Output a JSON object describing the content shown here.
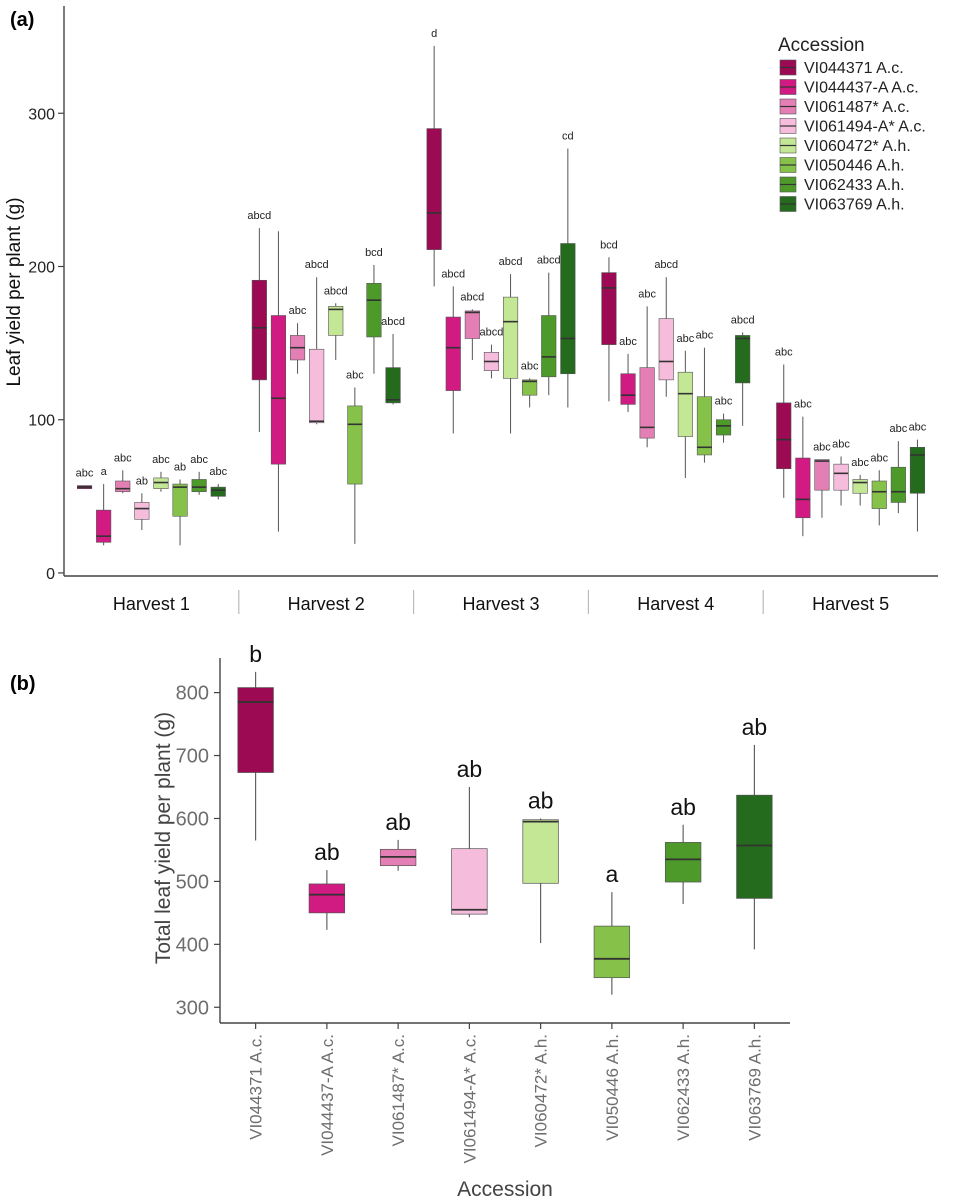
{
  "colors": {
    "accessions": [
      "#9b0a53",
      "#d11a82",
      "#e37fb4",
      "#f6bcdc",
      "#c3e795",
      "#86c24a",
      "#4d9a2a",
      "#256b1e"
    ],
    "median": "#333333",
    "whisker": "#555555"
  },
  "chart_data": [
    {
      "type": "box",
      "panel_label": "(a)",
      "title": "",
      "xlabel": "",
      "ylabel": "Leaf yield per plant (g)",
      "ylim": [
        -2,
        370
      ],
      "yticks": [
        0,
        100,
        200,
        300
      ],
      "grid": false,
      "legend": {
        "title": "Accession",
        "placement": "top-right",
        "entries": [
          "VI044371 A.c.",
          "VI044437-A A.c.",
          "VI061487* A.c.",
          "VI061494-A* A.c.",
          "VI060472* A.h.",
          "VI050446 A.h.",
          "VI062433 A.h.",
          "VI063769 A.h."
        ]
      },
      "groups": [
        {
          "label": "Harvest 1",
          "boxes": [
            {
              "accession": "VI044371 A.c.",
              "min": 55,
              "q1": 55,
              "median": 56,
              "q3": 57,
              "max": 57,
              "sig": "abc"
            },
            {
              "accession": "VI044437-A A.c.",
              "min": 18,
              "q1": 20,
              "median": 24,
              "q3": 41,
              "max": 58,
              "sig": "a"
            },
            {
              "accession": "VI061487* A.c.",
              "min": 52,
              "q1": 53,
              "median": 55,
              "q3": 60,
              "max": 67,
              "sig": "abc"
            },
            {
              "accession": "VI061494-A* A.c.",
              "min": 28,
              "q1": 35,
              "median": 42,
              "q3": 46,
              "max": 52,
              "sig": "ab"
            },
            {
              "accession": "VI060472* A.h.",
              "min": 53,
              "q1": 55,
              "median": 59,
              "q3": 62,
              "max": 66,
              "sig": "abc"
            },
            {
              "accession": "VI050446 A.h.",
              "min": 18,
              "q1": 37,
              "median": 56,
              "q3": 58,
              "max": 61,
              "sig": "ab"
            },
            {
              "accession": "VI062433 A.h.",
              "min": 51,
              "q1": 53,
              "median": 56,
              "q3": 61,
              "max": 66,
              "sig": "abc"
            },
            {
              "accession": "VI063769 A.h.",
              "min": 48,
              "q1": 50,
              "median": 54,
              "q3": 56,
              "max": 58,
              "sig": "abc"
            }
          ]
        },
        {
          "label": "Harvest 2",
          "boxes": [
            {
              "accession": "VI044371 A.c.",
              "min": 92,
              "q1": 126,
              "median": 160,
              "q3": 191,
              "max": 225,
              "sig": "abcd"
            },
            {
              "accession": "VI044437-A A.c.",
              "min": 27,
              "q1": 71,
              "median": 114,
              "q3": 168,
              "max": 223,
              "sig": ""
            },
            {
              "accession": "VI061487* A.c.",
              "min": 130,
              "q1": 139,
              "median": 147,
              "q3": 155,
              "max": 163,
              "sig": "abc"
            },
            {
              "accession": "VI061494-A* A.c.",
              "min": 97,
              "q1": 98,
              "median": 99,
              "q3": 146,
              "max": 193,
              "sig": "abcd"
            },
            {
              "accession": "VI060472* A.h.",
              "min": 139,
              "q1": 155,
              "median": 172,
              "q3": 174,
              "max": 176,
              "sig": "abcd"
            },
            {
              "accession": "VI050446 A.h.",
              "min": 19,
              "q1": 58,
              "median": 97,
              "q3": 109,
              "max": 121,
              "sig": "abc"
            },
            {
              "accession": "VI062433 A.h.",
              "min": 130,
              "q1": 154,
              "median": 178,
              "q3": 189,
              "max": 201,
              "sig": "bcd"
            },
            {
              "accession": "VI063769 A.h.",
              "min": 110,
              "q1": 111,
              "median": 113,
              "q3": 134,
              "max": 156,
              "sig": "abcd"
            }
          ]
        },
        {
          "label": "Harvest 3",
          "boxes": [
            {
              "accession": "VI044371 A.c.",
              "min": 187,
              "q1": 211,
              "median": 235,
              "q3": 290,
              "max": 344,
              "sig": "d"
            },
            {
              "accession": "VI044437-A A.c.",
              "min": 91,
              "q1": 119,
              "median": 147,
              "q3": 167,
              "max": 187,
              "sig": "abcd"
            },
            {
              "accession": "VI061487* A.c.",
              "min": 139,
              "q1": 153,
              "median": 170,
              "q3": 171,
              "max": 172,
              "sig": "abcd"
            },
            {
              "accession": "VI061494-A* A.c.",
              "min": 127,
              "q1": 132,
              "median": 138,
              "q3": 144,
              "max": 149,
              "sig": "abcd"
            },
            {
              "accession": "VI060472* A.h.",
              "min": 91,
              "q1": 127,
              "median": 164,
              "q3": 180,
              "max": 195,
              "sig": "abcd"
            },
            {
              "accession": "VI050446 A.h.",
              "min": 108,
              "q1": 116,
              "median": 125,
              "q3": 126,
              "max": 127,
              "sig": "abc"
            },
            {
              "accession": "VI062433 A.h.",
              "min": 116,
              "q1": 128,
              "median": 141,
              "q3": 168,
              "max": 196,
              "sig": "abcd"
            },
            {
              "accession": "VI063769 A.h.",
              "min": 108,
              "q1": 130,
              "median": 153,
              "q3": 215,
              "max": 277,
              "sig": "cd"
            }
          ]
        },
        {
          "label": "Harvest 4",
          "boxes": [
            {
              "accession": "VI044371 A.c.",
              "min": 112,
              "q1": 149,
              "median": 186,
              "q3": 196,
              "max": 206,
              "sig": "bcd"
            },
            {
              "accession": "VI044437-A A.c.",
              "min": 105,
              "q1": 110,
              "median": 116,
              "q3": 130,
              "max": 143,
              "sig": "abc"
            },
            {
              "accession": "VI061487* A.c.",
              "min": 82,
              "q1": 88,
              "median": 95,
              "q3": 134,
              "max": 174,
              "sig": "abc"
            },
            {
              "accession": "VI061494-A* A.c.",
              "min": 115,
              "q1": 126,
              "median": 138,
              "q3": 166,
              "max": 193,
              "sig": "abcd"
            },
            {
              "accession": "VI060472* A.h.",
              "min": 62,
              "q1": 89,
              "median": 117,
              "q3": 131,
              "max": 145,
              "sig": "abc"
            },
            {
              "accession": "VI050446 A.h.",
              "min": 72,
              "q1": 77,
              "median": 82,
              "q3": 115,
              "max": 147,
              "sig": "abc"
            },
            {
              "accession": "VI062433 A.h.",
              "min": 85,
              "q1": 90,
              "median": 96,
              "q3": 100,
              "max": 104,
              "sig": "abc"
            },
            {
              "accession": "VI063769 A.h.",
              "min": 96,
              "q1": 124,
              "median": 153,
              "q3": 155,
              "max": 157,
              "sig": "abcd"
            }
          ]
        },
        {
          "label": "Harvest 5",
          "boxes": [
            {
              "accession": "VI044371 A.c.",
              "min": 49,
              "q1": 68,
              "median": 87,
              "q3": 111,
              "max": 136,
              "sig": "abc"
            },
            {
              "accession": "VI044437-A A.c.",
              "min": 24,
              "q1": 36,
              "median": 48,
              "q3": 75,
              "max": 102,
              "sig": "abc"
            },
            {
              "accession": "VI061487* A.c.",
              "min": 36,
              "q1": 54,
              "median": 73,
              "q3": 74,
              "max": 74,
              "sig": "abc"
            },
            {
              "accession": "VI061494-A* A.c.",
              "min": 44,
              "q1": 54,
              "median": 65,
              "q3": 71,
              "max": 76,
              "sig": "abc"
            },
            {
              "accession": "VI060472* A.h.",
              "min": 44,
              "q1": 52,
              "median": 59,
              "q3": 61,
              "max": 64,
              "sig": "abc"
            },
            {
              "accession": "VI050446 A.h.",
              "min": 31,
              "q1": 42,
              "median": 53,
              "q3": 60,
              "max": 67,
              "sig": "abc"
            },
            {
              "accession": "VI062433 A.h.",
              "min": 39,
              "q1": 46,
              "median": 53,
              "q3": 69,
              "max": 86,
              "sig": "abc"
            },
            {
              "accession": "VI063769 A.h.",
              "min": 27,
              "q1": 52,
              "median": 77,
              "q3": 82,
              "max": 87,
              "sig": "abc"
            }
          ]
        }
      ]
    },
    {
      "type": "box",
      "panel_label": "(b)",
      "title": "",
      "xlabel": "Accession",
      "ylabel": "Total leaf yield per plant (g)",
      "ylim": [
        275,
        855
      ],
      "yticks": [
        300,
        400,
        500,
        600,
        700,
        800
      ],
      "grid": false,
      "boxes": [
        {
          "accession": "VI044371 A.c.",
          "min": 565,
          "q1": 673,
          "median": 785,
          "q3": 808,
          "max": 833,
          "sig": "b"
        },
        {
          "accession": "VI044437-A A.c.",
          "min": 423,
          "q1": 450,
          "median": 479,
          "q3": 496,
          "max": 518,
          "sig": "ab"
        },
        {
          "accession": "VI061487* A.c.",
          "min": 517,
          "q1": 525,
          "median": 539,
          "q3": 551,
          "max": 566,
          "sig": "ab"
        },
        {
          "accession": "VI061494-A* A.c.",
          "min": 443,
          "q1": 448,
          "median": 455,
          "q3": 552,
          "max": 650,
          "sig": "ab"
        },
        {
          "accession": "VI060472* A.h.",
          "min": 402,
          "q1": 497,
          "median": 595,
          "q3": 598,
          "max": 600,
          "sig": "ab"
        },
        {
          "accession": "VI050446 A.h.",
          "min": 320,
          "q1": 347,
          "median": 377,
          "q3": 429,
          "max": 483,
          "sig": "a"
        },
        {
          "accession": "VI062433 A.h.",
          "min": 464,
          "q1": 499,
          "median": 535,
          "q3": 562,
          "max": 590,
          "sig": "ab"
        },
        {
          "accession": "VI063769 A.h.",
          "min": 392,
          "q1": 473,
          "median": 557,
          "q3": 637,
          "max": 717,
          "sig": "ab"
        }
      ]
    }
  ]
}
